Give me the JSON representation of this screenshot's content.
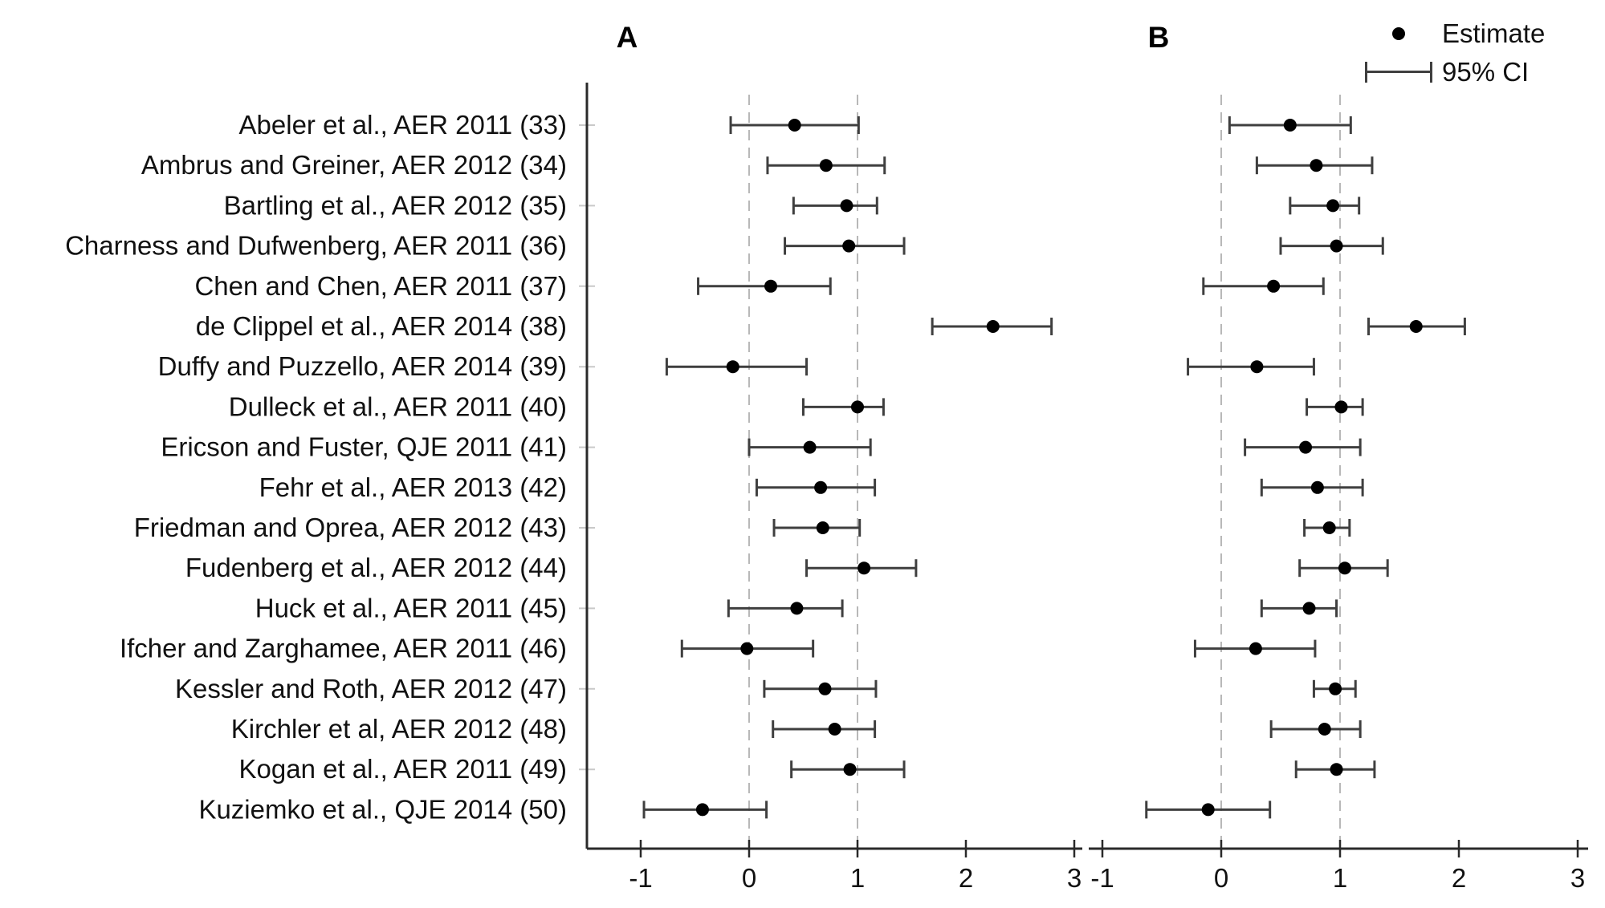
{
  "figure": {
    "panel_a_title": "A",
    "panel_b_title": "B",
    "legend": {
      "estimate_label": "Estimate",
      "ci_label": "95% CI"
    }
  },
  "colors": {
    "point": "#000000",
    "ci_bar": "#3f3f3f",
    "axis": "#2a2a2a",
    "reference_dash": "#b8b8b8",
    "y_tick": "#c9c9c9",
    "text": "#111111"
  },
  "chart_data": {
    "type": "scatter",
    "subtype": "forest-plot",
    "title": "",
    "xlabel": "",
    "ylabel": "",
    "x_ticks": [
      -1,
      0,
      1,
      2,
      3
    ],
    "x_tick_labels": [
      "-1",
      "0",
      "1",
      "2",
      "3"
    ],
    "reference_lines_x": [
      0,
      1
    ],
    "grid": "dashed vertical reference lines at x=0 and x=1",
    "legend_position": "top-right",
    "legend": [
      "Estimate",
      "95% CI"
    ],
    "studies": [
      "Abeler et al., AER 2011 (33)",
      "Ambrus and Greiner, AER 2012 (34)",
      "Bartling et al., AER 2012 (35)",
      "Charness and Dufwenberg, AER 2011 (36)",
      "Chen and Chen, AER 2011 (37)",
      "de Clippel et al., AER 2014 (38)",
      "Duffy and Puzzello, AER 2014 (39)",
      "Dulleck et al., AER 2011 (40)",
      "Ericson and Fuster, QJE 2011 (41)",
      "Fehr et al., AER 2013 (42)",
      "Friedman and Oprea, AER 2012 (43)",
      "Fudenberg et al., AER 2012 (44)",
      "Huck et al., AER 2011 (45)",
      "Ifcher and Zarghamee, AER 2011 (46)",
      "Kessler and Roth, AER 2012 (47)",
      "Kirchler et al, AER 2012 (48)",
      "Kogan et al., AER 2011 (49)",
      "Kuziemko et al., QJE 2014 (50)"
    ],
    "panels": [
      {
        "label": "A",
        "xlim": [
          -1.5,
          3.05
        ],
        "points": [
          {
            "est": 0.42,
            "lo": -0.17,
            "hi": 1.01
          },
          {
            "est": 0.71,
            "lo": 0.17,
            "hi": 1.25
          },
          {
            "est": 0.9,
            "lo": 0.41,
            "hi": 1.18
          },
          {
            "est": 0.92,
            "lo": 0.33,
            "hi": 1.43
          },
          {
            "est": 0.2,
            "lo": -0.47,
            "hi": 0.75
          },
          {
            "est": 2.25,
            "lo": 1.69,
            "hi": 2.79
          },
          {
            "est": -0.15,
            "lo": -0.76,
            "hi": 0.53
          },
          {
            "est": 1.0,
            "lo": 0.5,
            "hi": 1.24
          },
          {
            "est": 0.56,
            "lo": 0.0,
            "hi": 1.12
          },
          {
            "est": 0.66,
            "lo": 0.07,
            "hi": 1.16
          },
          {
            "est": 0.68,
            "lo": 0.23,
            "hi": 1.02
          },
          {
            "est": 1.06,
            "lo": 0.53,
            "hi": 1.54
          },
          {
            "est": 0.44,
            "lo": -0.19,
            "hi": 0.86
          },
          {
            "est": -0.02,
            "lo": -0.62,
            "hi": 0.59
          },
          {
            "est": 0.7,
            "lo": 0.14,
            "hi": 1.17
          },
          {
            "est": 0.79,
            "lo": 0.22,
            "hi": 1.16
          },
          {
            "est": 0.93,
            "lo": 0.39,
            "hi": 1.43
          },
          {
            "est": -0.43,
            "lo": -0.97,
            "hi": 0.16
          }
        ]
      },
      {
        "label": "B",
        "xlim": [
          -1.1,
          3.1
        ],
        "points": [
          {
            "est": 0.58,
            "lo": 0.07,
            "hi": 1.09
          },
          {
            "est": 0.8,
            "lo": 0.3,
            "hi": 1.27
          },
          {
            "est": 0.94,
            "lo": 0.58,
            "hi": 1.16
          },
          {
            "est": 0.97,
            "lo": 0.5,
            "hi": 1.36
          },
          {
            "est": 0.44,
            "lo": -0.15,
            "hi": 0.86
          },
          {
            "est": 1.64,
            "lo": 1.24,
            "hi": 2.05
          },
          {
            "est": 0.3,
            "lo": -0.28,
            "hi": 0.78
          },
          {
            "est": 1.01,
            "lo": 0.72,
            "hi": 1.19
          },
          {
            "est": 0.71,
            "lo": 0.2,
            "hi": 1.17
          },
          {
            "est": 0.81,
            "lo": 0.34,
            "hi": 1.19
          },
          {
            "est": 0.91,
            "lo": 0.7,
            "hi": 1.08
          },
          {
            "est": 1.04,
            "lo": 0.66,
            "hi": 1.4
          },
          {
            "est": 0.74,
            "lo": 0.34,
            "hi": 0.97
          },
          {
            "est": 0.29,
            "lo": -0.22,
            "hi": 0.79
          },
          {
            "est": 0.96,
            "lo": 0.78,
            "hi": 1.13
          },
          {
            "est": 0.87,
            "lo": 0.42,
            "hi": 1.17
          },
          {
            "est": 0.97,
            "lo": 0.63,
            "hi": 1.29
          },
          {
            "est": -0.11,
            "lo": -0.63,
            "hi": 0.41
          }
        ]
      }
    ]
  }
}
